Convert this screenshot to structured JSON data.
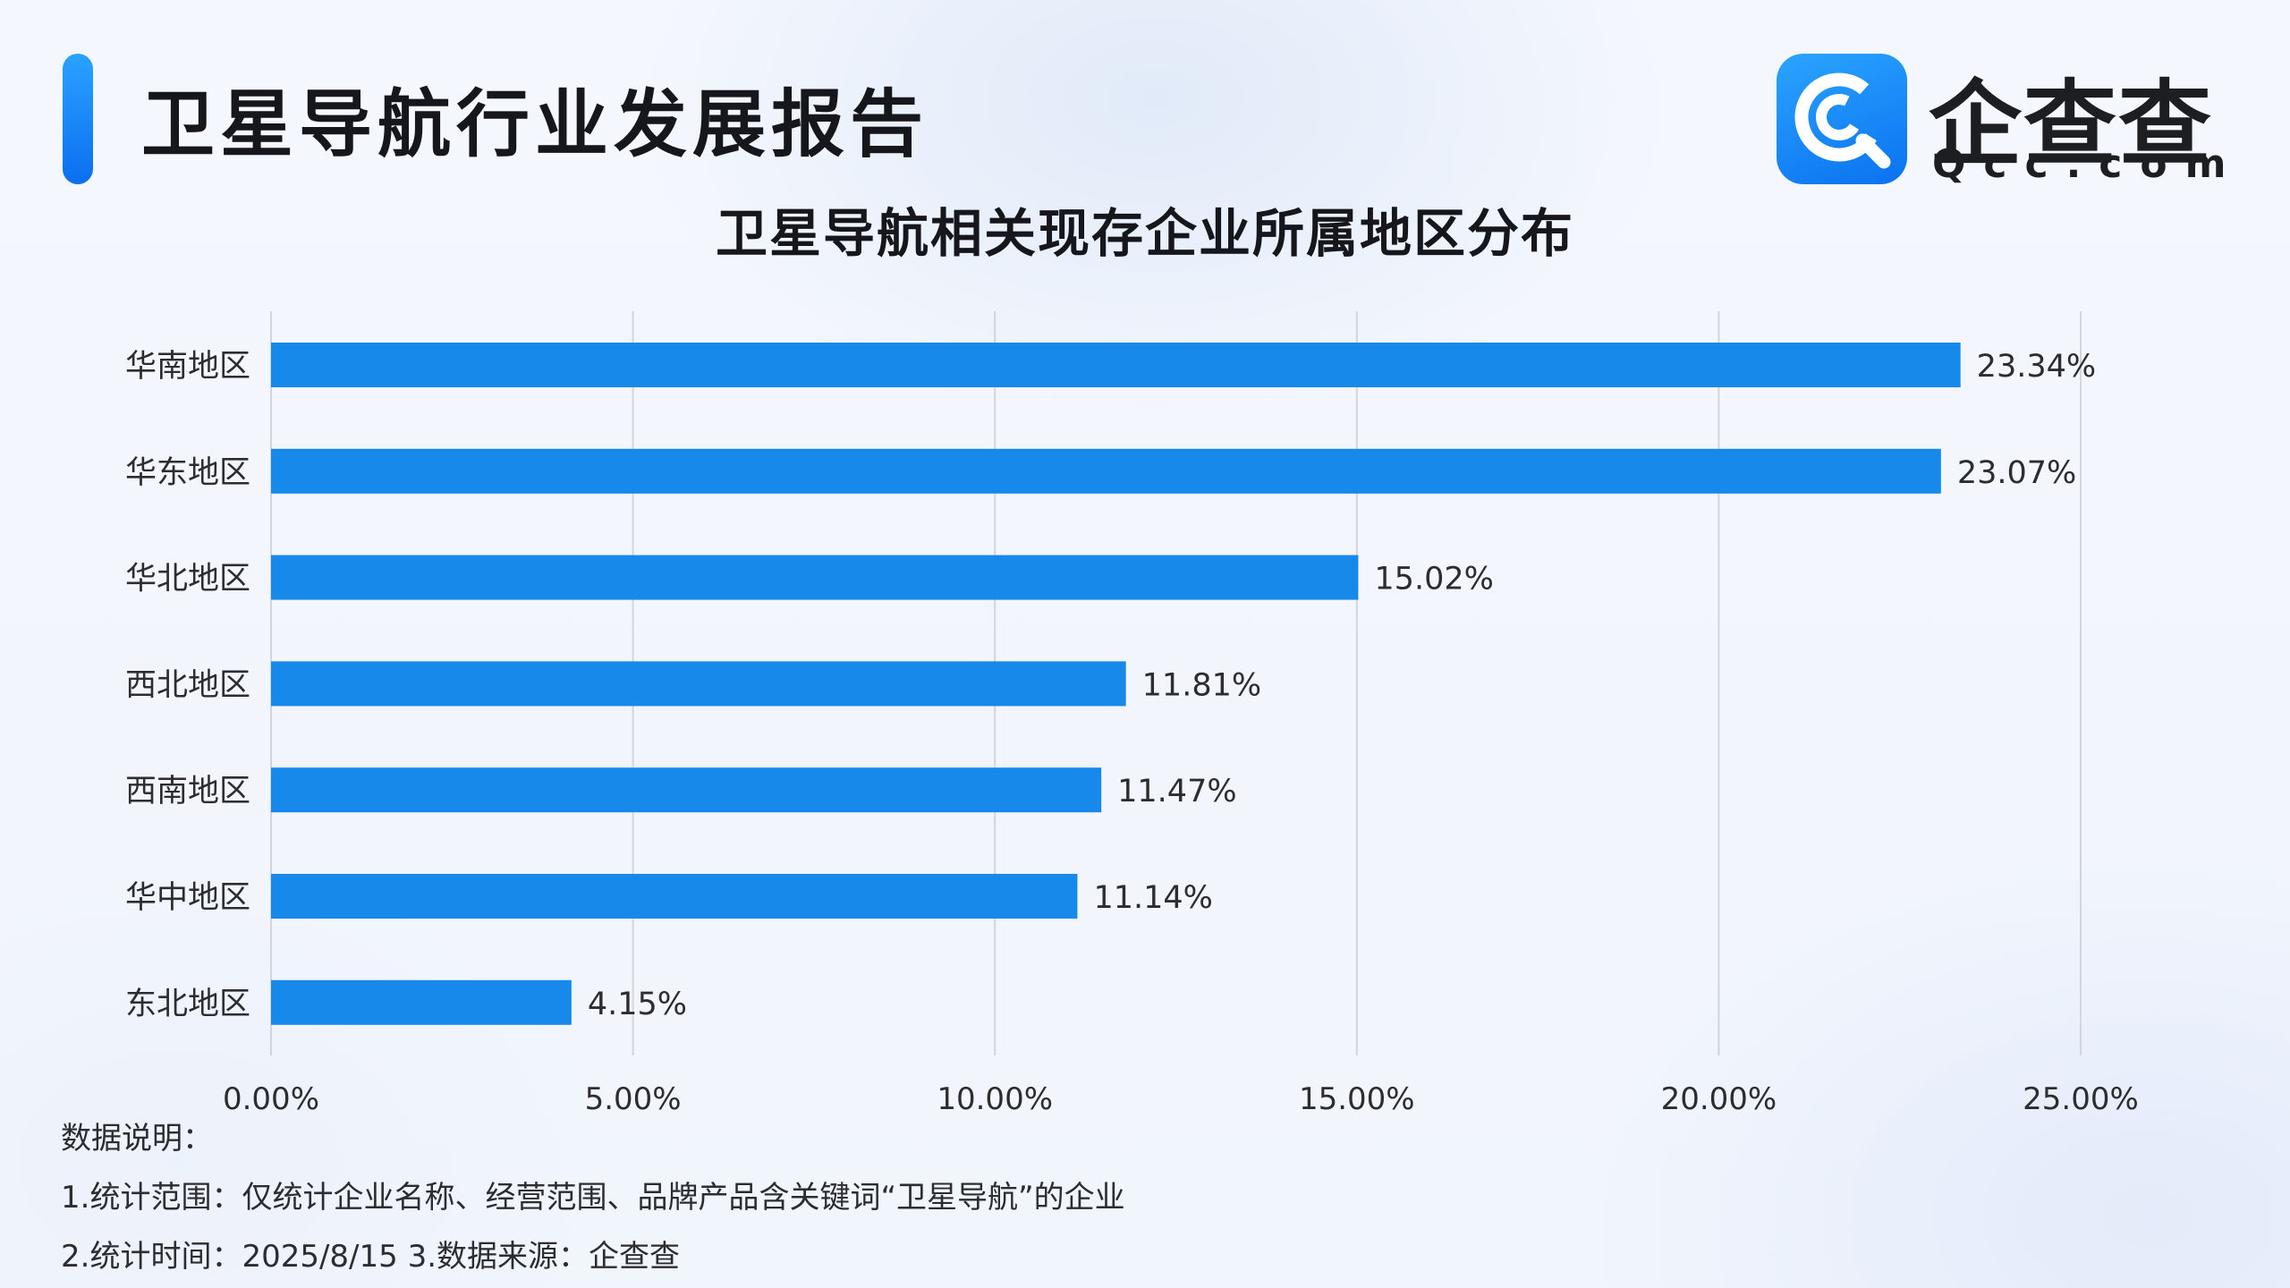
{
  "header": {
    "report_title": "卫星导航行业发展报告"
  },
  "logo": {
    "name_cn": "企查查",
    "name_en": "Qcc.com",
    "icon": "qcc-logo-icon"
  },
  "colors": {
    "bar": "#1789ea",
    "accent": "#1a8cff",
    "grid": "#d2d6dc"
  },
  "chart_data": {
    "type": "bar",
    "orientation": "horizontal",
    "title": "卫星导航相关现存企业所属地区分布",
    "categories": [
      "华南地区",
      "华东地区",
      "华北地区",
      "西北地区",
      "西南地区",
      "华中地区",
      "东北地区"
    ],
    "values": [
      23.34,
      23.07,
      15.02,
      11.81,
      11.47,
      11.14,
      4.15
    ],
    "value_labels": [
      "23.34%",
      "23.07%",
      "15.02%",
      "11.81%",
      "11.47%",
      "11.14%",
      "4.15%"
    ],
    "x_ticks": [
      0,
      5,
      10,
      15,
      20,
      25
    ],
    "x_tick_labels": [
      "0.00%",
      "5.00%",
      "10.00%",
      "15.00%",
      "20.00%",
      "25.00%"
    ],
    "xlim": [
      0,
      25
    ],
    "grid": "vertical",
    "legend": "none"
  },
  "notes": {
    "heading": "数据说明：",
    "line1": "1.统计范围：仅统计企业名称、经营范围、品牌产品含关键词“卫星导航”的企业",
    "line2": " 2.统计时间：2025/8/15 3.数据来源：企查查"
  }
}
